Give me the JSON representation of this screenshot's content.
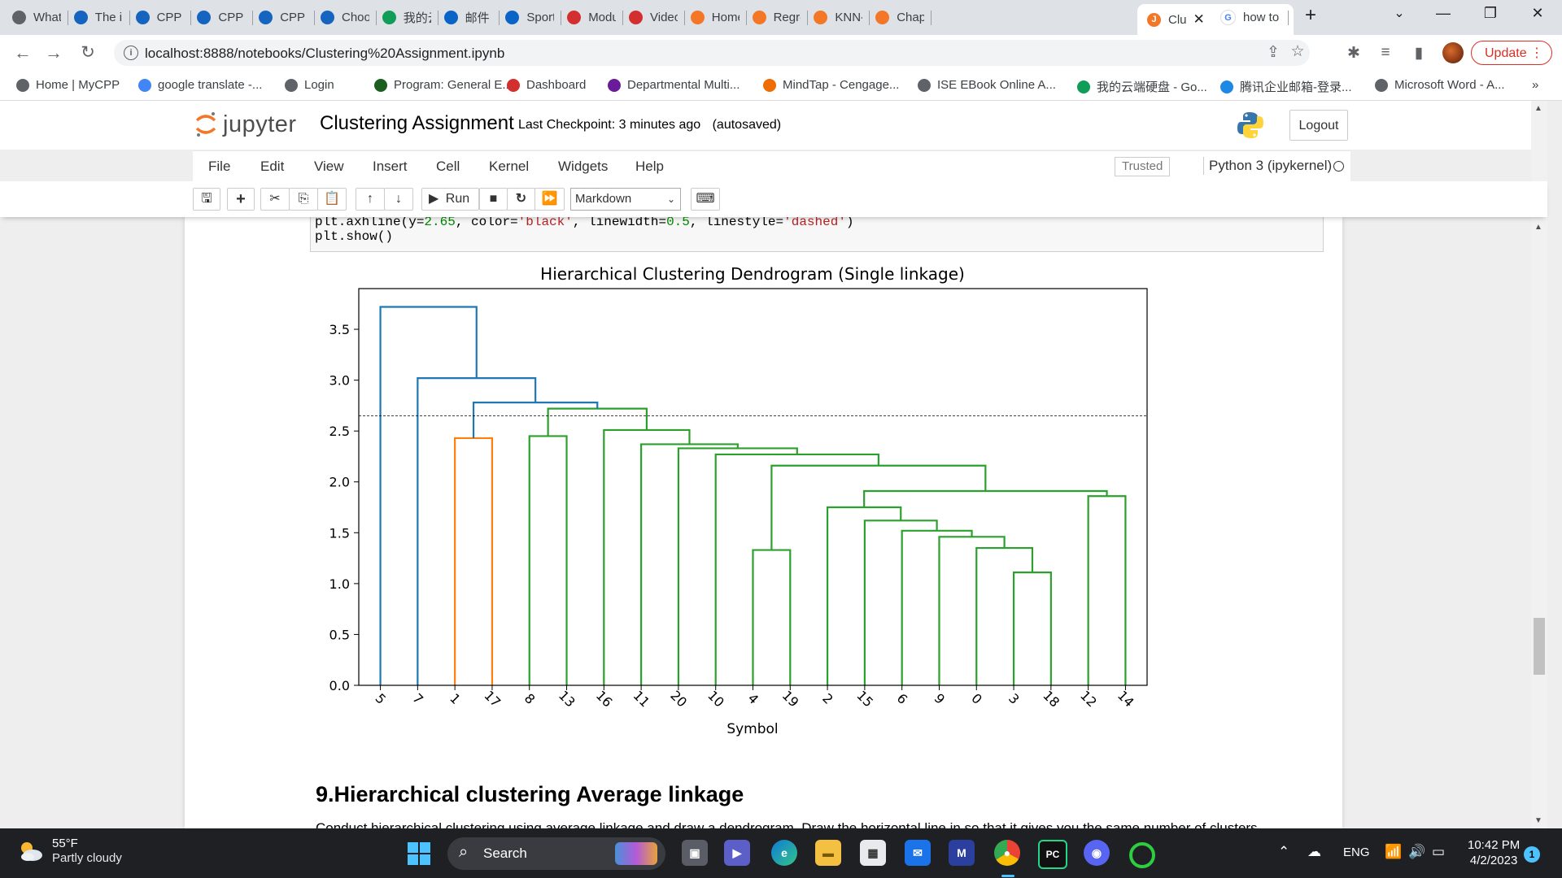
{
  "browser": {
    "tabs": [
      {
        "label": "What's",
        "icon_color": "#5f6368",
        "icon": "github-icon"
      },
      {
        "label": "The im",
        "icon_color": "#1565c0",
        "icon": "video-icon"
      },
      {
        "label": "CPP Sl",
        "icon_color": "#1565c0",
        "icon": "circle-icon"
      },
      {
        "label": "CPP Sl",
        "icon_color": "#1565c0",
        "icon": "circle-icon"
      },
      {
        "label": "CPP Sl",
        "icon_color": "#1565c0",
        "icon": "circle-icon"
      },
      {
        "label": "Choos",
        "icon_color": "#1565c0",
        "icon": "video-icon"
      },
      {
        "label": "我的云",
        "icon_color": "#0f9d58",
        "icon": "drive-icon"
      },
      {
        "label": "邮件 -",
        "icon_color": "#0a64c8",
        "icon": "outlook-icon"
      },
      {
        "label": "Sports",
        "icon_color": "#0a64c8",
        "icon": "k-icon"
      },
      {
        "label": "Modu",
        "icon_color": "#d32f2f",
        "icon": "canvas-icon"
      },
      {
        "label": "Video:",
        "icon_color": "#d32f2f",
        "icon": "canvas-icon"
      },
      {
        "label": "Home",
        "icon_color": "#f37726",
        "icon": "jupyter-icon"
      },
      {
        "label": "Regre",
        "icon_color": "#f37726",
        "icon": "book-icon"
      },
      {
        "label": "KNN-a",
        "icon_color": "#f37726",
        "icon": "book-icon"
      },
      {
        "label": "Chapt",
        "icon_color": "#f37726",
        "icon": "book-icon"
      }
    ],
    "active_tab": {
      "label": "Clu",
      "icon": "jupyter-icon"
    },
    "tab_after": {
      "label": "how to",
      "icon": "google-icon"
    },
    "new_tab_symbol": "+",
    "url": "localhost:8888/notebooks/Clustering%20Assignment.ipynb",
    "update_label": "Update",
    "bookmarks": [
      {
        "label": "Home | MyCPP",
        "icon": "circle-icon",
        "color": "#5f6368"
      },
      {
        "label": "google translate -...",
        "icon": "google-icon",
        "color": "#4285f4"
      },
      {
        "label": "Login",
        "icon": "globe-icon",
        "color": "#5f6368"
      },
      {
        "label": "Program: General E...",
        "icon": "leaf-icon",
        "color": "#1b5e20"
      },
      {
        "label": "Dashboard",
        "icon": "canvas-icon",
        "color": "#d32f2f"
      },
      {
        "label": "Departmental Multi...",
        "icon": "p-icon",
        "color": "#6a1b9a"
      },
      {
        "label": "MindTap - Cengage...",
        "icon": "star-icon",
        "color": "#ef6c00"
      },
      {
        "label": "ISE EBook Online A...",
        "icon": "globe-icon",
        "color": "#5f6368"
      },
      {
        "label": "我的云端硬盘 - Go...",
        "icon": "drive-icon",
        "color": "#0f9d58"
      },
      {
        "label": "腾讯企业邮箱-登录...",
        "icon": "mail-icon",
        "color": "#1e88e5"
      },
      {
        "label": "Microsoft Word - A...",
        "icon": "globe-icon",
        "color": "#5f6368"
      }
    ],
    "bookmarks_more": "»"
  },
  "jupyter": {
    "logo_text": "jupyter",
    "notebook_title": "Clustering Assignment",
    "checkpoint": "Last Checkpoint: 3 minutes ago",
    "autosave": "(autosaved)",
    "logout_label": "Logout",
    "menus": [
      "File",
      "Edit",
      "View",
      "Insert",
      "Cell",
      "Kernel",
      "Widgets",
      "Help"
    ],
    "trusted_label": "Trusted",
    "kernel_name": "Python 3 (ipykernel)",
    "toolbar": {
      "run_label": "Run",
      "cell_type": "Markdown"
    },
    "code_cell": {
      "line1_parts": [
        "plt.axhline(y=",
        "2.65",
        ", color=",
        "'black'",
        ", linewidth=",
        "0.5",
        ", linestyle=",
        "'dashed'",
        ")"
      ],
      "line2": "plt.show()"
    },
    "section_heading": "9.Hierarchical clustering Average linkage",
    "cut_text": "Conduct hierarchical clustering using average linkage and draw a dendrogram. Draw the horizontal line in so that it gives you the same number of clusters"
  },
  "chart_data": {
    "type": "dendrogram",
    "title": "Hierarchical Clustering Dendrogram (Single linkage)",
    "xlabel": "Symbol",
    "ylabel": "",
    "ylim": [
      0,
      3.9
    ],
    "yticks": [
      "0.0",
      "0.5",
      "1.0",
      "1.5",
      "2.0",
      "2.5",
      "3.0",
      "3.5"
    ],
    "leaves": [
      "5",
      "7",
      "1",
      "17",
      "8",
      "13",
      "16",
      "11",
      "20",
      "10",
      "4",
      "19",
      "2",
      "15",
      "6",
      "9",
      "0",
      "3",
      "18",
      "12",
      "14"
    ],
    "cut_line": {
      "y": 2.65,
      "color": "#000000",
      "style": "dashed"
    },
    "colors": {
      "orange": "#ff7f0e",
      "green": "#2ca02c",
      "blue": "#1f77b4"
    },
    "merges": [
      {
        "id": "L3",
        "left": "3",
        "right": "18",
        "height": 1.11,
        "color": "green"
      },
      {
        "id": "L4",
        "left": "4",
        "right": "19",
        "height": 1.33,
        "color": "green"
      },
      {
        "id": "L3b",
        "left": "0",
        "right": "L3",
        "height": 1.35,
        "color": "green"
      },
      {
        "id": "L9",
        "left": "9",
        "right": "L3b",
        "height": 1.46,
        "color": "green"
      },
      {
        "id": "L6",
        "left": "6",
        "right": "L9",
        "height": 1.52,
        "color": "green"
      },
      {
        "id": "L15",
        "left": "15",
        "right": "L6",
        "height": 1.62,
        "color": "green"
      },
      {
        "id": "L2",
        "left": "2",
        "right": "L15",
        "height": 1.75,
        "color": "green"
      },
      {
        "id": "L12",
        "left": "12",
        "right": "14",
        "height": 1.86,
        "color": "green"
      },
      {
        "id": "L2b",
        "left": "L2",
        "right": "L12",
        "height": 1.91,
        "color": "green"
      },
      {
        "id": "L4b",
        "left": "L4",
        "right": "L2b",
        "height": 2.16,
        "color": "green"
      },
      {
        "id": "L10",
        "left": "10",
        "right": "L4b",
        "height": 2.27,
        "color": "green"
      },
      {
        "id": "L20",
        "left": "20",
        "right": "L10",
        "height": 2.33,
        "color": "green"
      },
      {
        "id": "L11",
        "left": "11",
        "right": "L20",
        "height": 2.37,
        "color": "green"
      },
      {
        "id": "L1",
        "left": "1",
        "right": "17",
        "height": 2.43,
        "color": "orange"
      },
      {
        "id": "L8",
        "left": "8",
        "right": "13",
        "height": 2.45,
        "color": "green"
      },
      {
        "id": "L16",
        "left": "16",
        "right": "L11",
        "height": 2.51,
        "color": "green"
      },
      {
        "id": "L8b",
        "left": "L8",
        "right": "L16",
        "height": 2.72,
        "color": "green"
      },
      {
        "id": "L1b",
        "left": "L1",
        "right": "L8b",
        "height": 2.78,
        "color": "blue"
      },
      {
        "id": "L7",
        "left": "7",
        "right": "L1b",
        "height": 3.02,
        "color": "blue"
      },
      {
        "id": "L5",
        "left": "5",
        "right": "L7",
        "height": 3.72,
        "color": "blue"
      }
    ]
  },
  "taskbar": {
    "weather_temp": "55°F",
    "weather_desc": "Partly cloudy",
    "search_label": "Search",
    "language": "ENG",
    "time": "10:42 PM",
    "date": "4/2/2023",
    "notifications": "1"
  }
}
